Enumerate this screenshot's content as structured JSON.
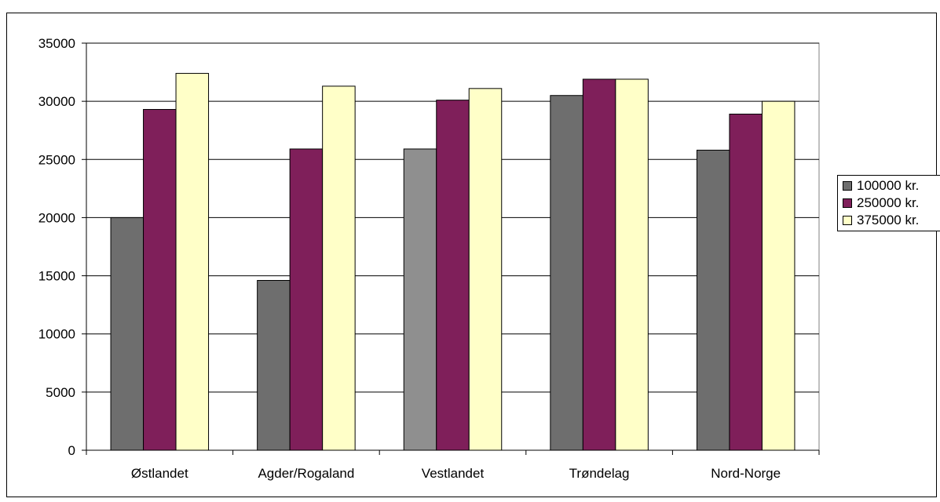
{
  "chart_data": {
    "type": "bar",
    "title": "",
    "xlabel": "",
    "ylabel": "",
    "categories": [
      "Østlandet",
      "Agder/Rogaland",
      "Vestlandet",
      "Trøndelag",
      "Nord-Norge"
    ],
    "series": [
      {
        "name": "100000 kr.",
        "color": "#6e6e6e",
        "values": [
          20000,
          14600,
          25900,
          30500,
          25800
        ]
      },
      {
        "name": "250000 kr.",
        "color": "#7f1f5a",
        "values": [
          29300,
          25900,
          30100,
          31900,
          28900
        ]
      },
      {
        "name": "375000 kr.",
        "color": "#ffffc8",
        "values": [
          32400,
          31300,
          31100,
          31900,
          30000
        ]
      }
    ],
    "ylim": [
      0,
      35000
    ],
    "yticks": [
      0,
      5000,
      10000,
      15000,
      20000,
      25000,
      30000,
      35000
    ],
    "grid": true,
    "legend_position": "right",
    "highlight": {
      "series": 0,
      "category": 2,
      "color": "#8f8f8f"
    }
  }
}
